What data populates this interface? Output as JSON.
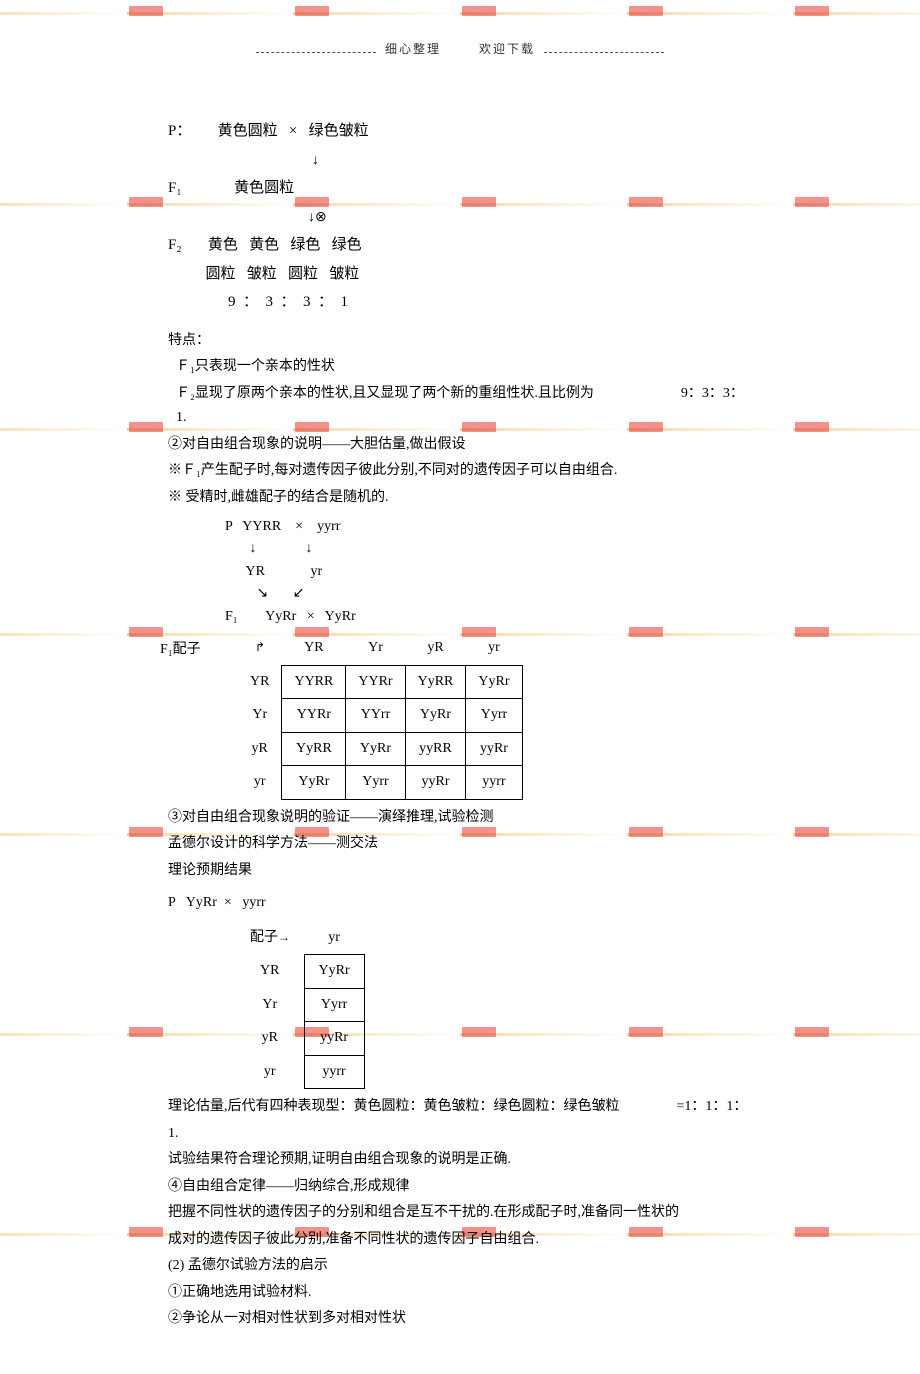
{
  "header": {
    "left": "细心整理",
    "right": "欢迎下载"
  },
  "cross1": {
    "P": "P：",
    "p1": "黄色圆粒",
    "x": "×",
    "p2": "绿色皱粒",
    "F1": "F₁",
    "f1_phen": "黄色圆粒",
    "F2": "F₂",
    "f2": [
      "黄色\n圆粒",
      "黄色\n皱粒",
      "绿色\n圆粒",
      "绿色\n皱粒"
    ],
    "ratio": "9  ：  3  ：  3  ：  1"
  },
  "text": {
    "t1": "特点：",
    "t2": "Ｆ₁只表现一个亲本的性状",
    "t3a": "Ｆ₂显现了原两个亲本的性状,且又显现了两个新的重组性状.且比例为",
    "t3b": "9：3：3：1.",
    "t4": "②对自由组合现象的说明——大胆估量,做出假设",
    "t5": "※Ｆ₁产生配子时,每对遗传因子彼此分别,不同对的遗传因子可以自由组合.",
    "t6": "※  受精时,雌雄配子的结合是随机的.",
    "t7": "③对自由组合现象说明的验证——演绎推理,试验检测",
    "t8": "孟德尔设计的科学方法——测交法",
    "t9": "理论预期结果",
    "t10": "理论估量,后代有四种表现型：黄色圆粒：黄色皱粒：绿色圆粒：绿色皱粒",
    "t10b": "=1：1：1：",
    "t10c": "1.",
    "t11": "试验结果符合理论预期,证明自由组合现象的说明是正确.",
    "t12": "④自由组合定律——归纳综合,形成规律",
    "t13": "把握不同性状的遗传因子的分别和组合是互不干扰的.在形成配子时,准备同一性状的",
    "t14": "成对的遗传因子彼此分别,准备不同性状的遗传因子自由组合.",
    "t15": "(2)   孟德尔试验方法的启示",
    "t16": "①正确地选用试验材料.",
    "t17": "②争论从一对相对性状到多对相对性状"
  },
  "cross2": {
    "P": "P",
    "p1": "YYRR",
    "p2": "yyrr",
    "g1": "YR",
    "g2": "yr",
    "F1": "F₁",
    "f1g1": "YyRr",
    "f1g2": "YyRr",
    "f1_gamete_label": "F₁配子",
    "gametes": [
      "YR",
      "Yr",
      "yR",
      "yr"
    ],
    "table": [
      [
        "YYRR",
        "YYRr",
        "YyRR",
        "YyRr"
      ],
      [
        "YYRr",
        "YYrr",
        "YyRr",
        "Yyrr"
      ],
      [
        "YyRR",
        "YyRr",
        "yyRR",
        "yyRr"
      ],
      [
        "YyRr",
        "Yyrr",
        "yyRr",
        "yyrr"
      ]
    ]
  },
  "testcross": {
    "P": "P",
    "p1": "YyRr",
    "p2": "yyrr",
    "gamete_label": "配子",
    "col": "yr",
    "rows": [
      "YR",
      "Yr",
      "yR",
      "yr"
    ],
    "cells": [
      "YyRr",
      "Yyrr",
      "yyRr",
      "yyrr"
    ]
  },
  "wm_positions": [
    4,
    195,
    420,
    625,
    825,
    1025,
    1225
  ]
}
